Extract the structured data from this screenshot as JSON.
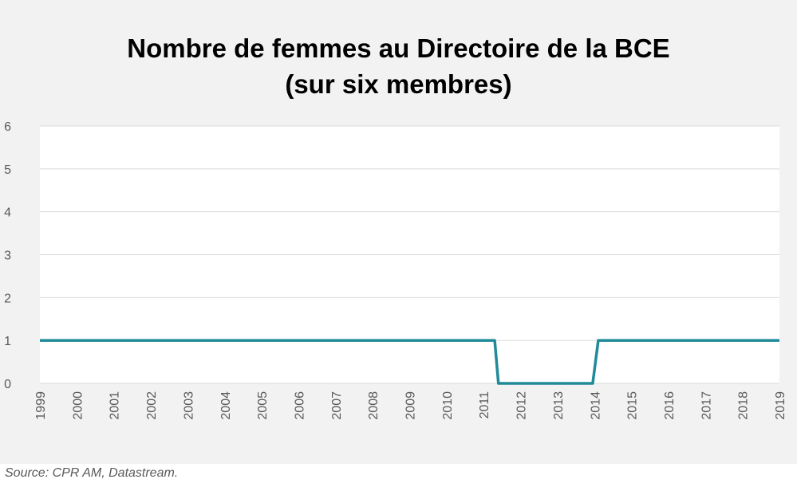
{
  "chart_data": {
    "type": "line",
    "title_line1": "Nombre de femmes au Directoire de la BCE",
    "title_line2": "(sur six membres)",
    "xlabel": "",
    "ylabel": "",
    "x_ticks": [
      "1999",
      "2000",
      "2001",
      "2002",
      "2003",
      "2004",
      "2005",
      "2006",
      "2007",
      "2008",
      "2009",
      "2010",
      "2011",
      "2012",
      "2013",
      "2014",
      "2015",
      "2016",
      "2017",
      "2018",
      "2019"
    ],
    "y_ticks": [
      "0",
      "1",
      "2",
      "3",
      "4",
      "5",
      "6"
    ],
    "xlim": [
      1999,
      2019
    ],
    "ylim": [
      0,
      6
    ],
    "grid": "horizontal",
    "series": [
      {
        "color": "#1f8a99",
        "points": [
          {
            "x": 1999.0,
            "y": 1
          },
          {
            "x": 2011.3,
            "y": 1
          },
          {
            "x": 2011.4,
            "y": 0
          },
          {
            "x": 2013.95,
            "y": 0
          },
          {
            "x": 2014.1,
            "y": 1
          },
          {
            "x": 2019.0,
            "y": 1
          }
        ]
      }
    ]
  },
  "footer": {
    "source": "Source: CPR AM, Datastream."
  },
  "colors": {
    "panel_background": "#f2f2f2",
    "plot_background": "#ffffff",
    "gridline": "#d9d9d9",
    "axis_text": "#595959",
    "line": "#1f8a99"
  }
}
